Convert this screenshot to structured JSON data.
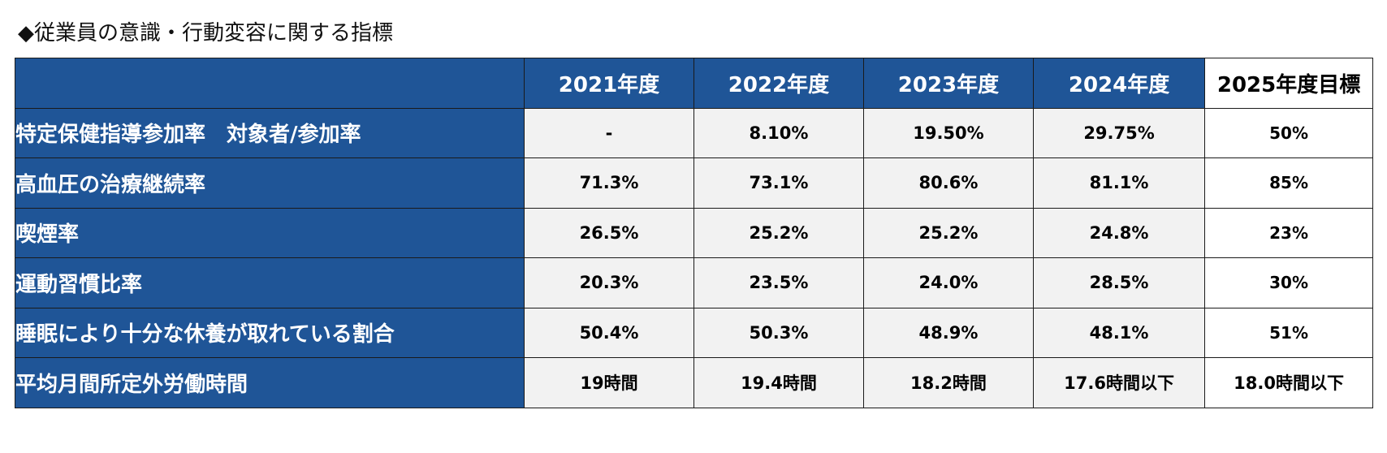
{
  "title": "◆従業員の意識・行動変容に関する指標",
  "columns": [
    "2021年度",
    "2022年度",
    "2023年度",
    "2024年度",
    "2025年度目標"
  ],
  "rows": [
    {
      "label": "特定保健指導参加率　対象者/参加率",
      "values": [
        "-",
        "8.10%",
        "19.50%",
        "29.75%",
        "50%"
      ]
    },
    {
      "label": "高血圧の治療継続率",
      "values": [
        "71.3%",
        "73.1%",
        "80.6%",
        "81.1%",
        "85%"
      ]
    },
    {
      "label": "喫煙率",
      "values": [
        "26.5%",
        "25.2%",
        "25.2%",
        "24.8%",
        "23%"
      ]
    },
    {
      "label": "運動習慣比率",
      "values": [
        "20.3%",
        "23.5%",
        "24.0%",
        "28.5%",
        "30%"
      ]
    },
    {
      "label": "睡眠により十分な休養が取れている割合",
      "values": [
        "50.4%",
        "50.3%",
        "48.9%",
        "48.1%",
        "51%"
      ]
    },
    {
      "label": "平均月間所定外労働時間",
      "values": [
        "19時間",
        "19.4時間",
        "18.2時間",
        "17.6時間以下",
        "18.0時間以下"
      ]
    }
  ],
  "colors": {
    "header_blue": "#1f5597",
    "cell_gray": "#f2f2f2",
    "target_white": "#ffffff",
    "border": "#1a1a1a"
  }
}
